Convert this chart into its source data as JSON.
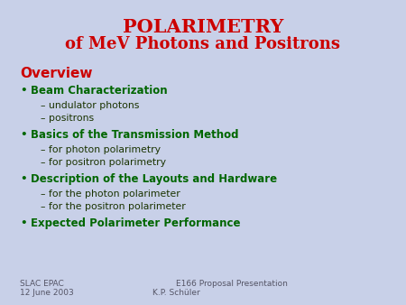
{
  "title_line1": "POLARIMETRY",
  "title_line2": "of MeV Photons and Positrons",
  "title_color": "#cc0000",
  "bg_color": "#c8d0e8",
  "section_color": "#cc0000",
  "bullet_color": "#006600",
  "sub_color": "#1a3300",
  "overview_text": "Overview",
  "bullets": [
    {
      "text": "Beam Characterization",
      "subs": [
        "undulator photons",
        "positrons"
      ]
    },
    {
      "text": "Basics of the Transmission Method",
      "subs": [
        "for photon polarimetry",
        "for positron polarimetry"
      ]
    },
    {
      "text": "Description of the Layouts and Hardware",
      "subs": [
        "for the photon polarimeter",
        "for the positron polarimeter"
      ]
    },
    {
      "text": "Expected Polarimeter Performance",
      "subs": []
    }
  ],
  "footer_left_line1": "SLAC EPAC",
  "footer_left_line2": "12 June 2003",
  "footer_right_line1": "E166 Proposal Presentation",
  "footer_right_line2": "K.P. Schüler",
  "footer_color": "#555566"
}
